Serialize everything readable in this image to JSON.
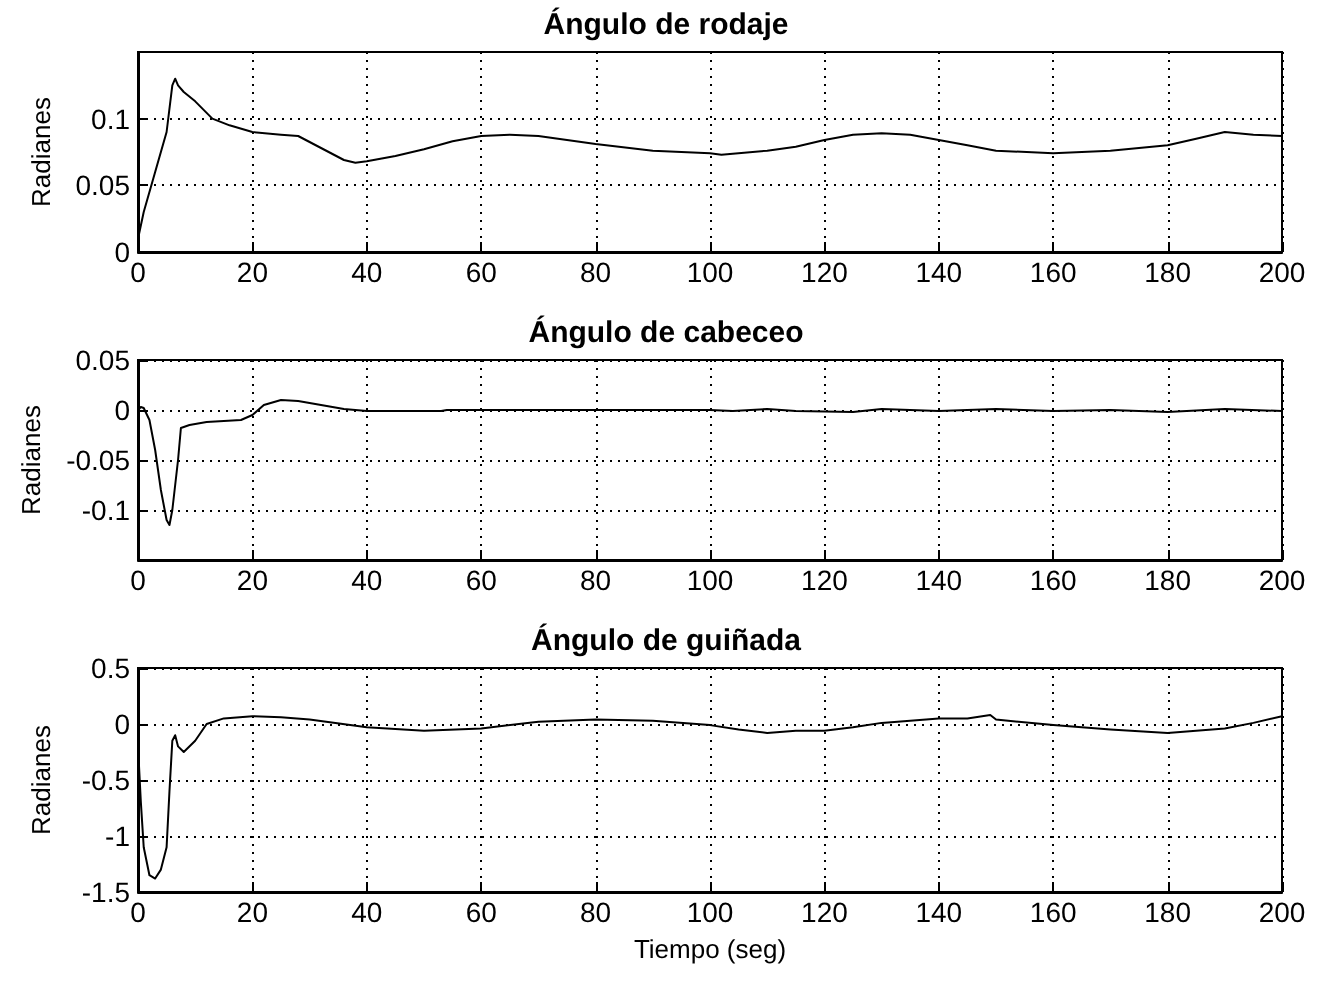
{
  "chart_data": [
    {
      "type": "line",
      "title": "Ángulo de rodaje",
      "ylabel": "Radianes",
      "xlim": [
        0,
        200
      ],
      "xticks": [
        0,
        20,
        40,
        60,
        80,
        100,
        120,
        140,
        160,
        180,
        200
      ],
      "ylim": [
        0,
        0.15
      ],
      "yticks": [
        0,
        0.05,
        0.1
      ],
      "grid": true,
      "marker": "none",
      "line_style": "solid",
      "series": [
        {
          "color": "#000000",
          "x": [
            0,
            1,
            3,
            5,
            6,
            6.5,
            7,
            8,
            10,
            13,
            16,
            20,
            25,
            28,
            32,
            36,
            38,
            40,
            45,
            50,
            55,
            60,
            65,
            70,
            75,
            80,
            90,
            100,
            102,
            110,
            115,
            120,
            125,
            130,
            135,
            140,
            145,
            150,
            160,
            170,
            180,
            185,
            190,
            195,
            200
          ],
          "values": [
            0.01,
            0.03,
            0.06,
            0.09,
            0.125,
            0.13,
            0.125,
            0.12,
            0.113,
            0.1,
            0.095,
            0.09,
            0.088,
            0.087,
            0.078,
            0.069,
            0.067,
            0.068,
            0.072,
            0.077,
            0.083,
            0.087,
            0.088,
            0.087,
            0.084,
            0.081,
            0.076,
            0.074,
            0.073,
            0.076,
            0.079,
            0.084,
            0.088,
            0.089,
            0.088,
            0.084,
            0.08,
            0.076,
            0.074,
            0.076,
            0.08,
            0.085,
            0.09,
            0.088,
            0.087
          ]
        }
      ]
    },
    {
      "type": "line",
      "title": "Ángulo de cabeceo",
      "ylabel": "Radianes",
      "xlim": [
        0,
        200
      ],
      "xticks": [
        0,
        20,
        40,
        60,
        80,
        100,
        120,
        140,
        160,
        180,
        200
      ],
      "ylim": [
        -0.15,
        0.05
      ],
      "yticks": [
        -0.1,
        -0.05,
        0,
        0.05
      ],
      "grid": true,
      "marker": "none",
      "line_style": "solid",
      "series": [
        {
          "color": "#000000",
          "x": [
            0,
            0.5,
            1,
            2,
            3,
            4,
            5,
            5.5,
            6,
            7,
            7.5,
            9,
            12,
            18,
            20,
            22,
            25,
            28,
            32,
            36,
            40,
            53,
            54,
            100,
            104,
            110,
            115,
            125,
            130,
            140,
            150,
            160,
            170,
            180,
            190,
            200
          ],
          "values": [
            0,
            0.003,
            0.002,
            -0.01,
            -0.04,
            -0.08,
            -0.11,
            -0.115,
            -0.1,
            -0.05,
            -0.018,
            -0.015,
            -0.012,
            -0.01,
            -0.005,
            0.005,
            0.01,
            0.009,
            0.005,
            0.001,
            -0.001,
            -0.001,
            0,
            0,
            -0.001,
            0.001,
            -0.001,
            -0.002,
            0.001,
            -0.001,
            0.001,
            -0.001,
            0,
            -0.002,
            0.001,
            -0.001
          ]
        }
      ]
    },
    {
      "type": "line",
      "title": "Ángulo de guiñada",
      "xlabel": "Tiempo (seg)",
      "ylabel": "Radianes",
      "xlim": [
        0,
        200
      ],
      "xticks": [
        0,
        20,
        40,
        60,
        80,
        100,
        120,
        140,
        160,
        180,
        200
      ],
      "ylim": [
        -1.5,
        0.5
      ],
      "yticks": [
        -1.5,
        -1,
        -0.5,
        0,
        0.5
      ],
      "grid": true,
      "marker": "none",
      "line_style": "solid",
      "series": [
        {
          "color": "#000000",
          "x": [
            0,
            0.5,
            1,
            2,
            3,
            4,
            5,
            5.5,
            6,
            6.5,
            7,
            8,
            10,
            12,
            15,
            20,
            25,
            30,
            40,
            50,
            60,
            70,
            80,
            90,
            100,
            105,
            110,
            115,
            120,
            125,
            130,
            140,
            145,
            149,
            150,
            160,
            170,
            180,
            190,
            195,
            200
          ],
          "values": [
            -0.2,
            -0.7,
            -1.1,
            -1.35,
            -1.38,
            -1.3,
            -1.1,
            -0.6,
            -0.15,
            -0.1,
            -0.2,
            -0.25,
            -0.15,
            0,
            0.05,
            0.07,
            0.06,
            0.04,
            -0.03,
            -0.06,
            -0.04,
            0.02,
            0.04,
            0.03,
            -0.01,
            -0.05,
            -0.08,
            -0.06,
            -0.06,
            -0.03,
            0.01,
            0.05,
            0.05,
            0.08,
            0.04,
            -0.01,
            -0.05,
            -0.08,
            -0.04,
            0.01,
            0.07
          ]
        }
      ]
    }
  ]
}
